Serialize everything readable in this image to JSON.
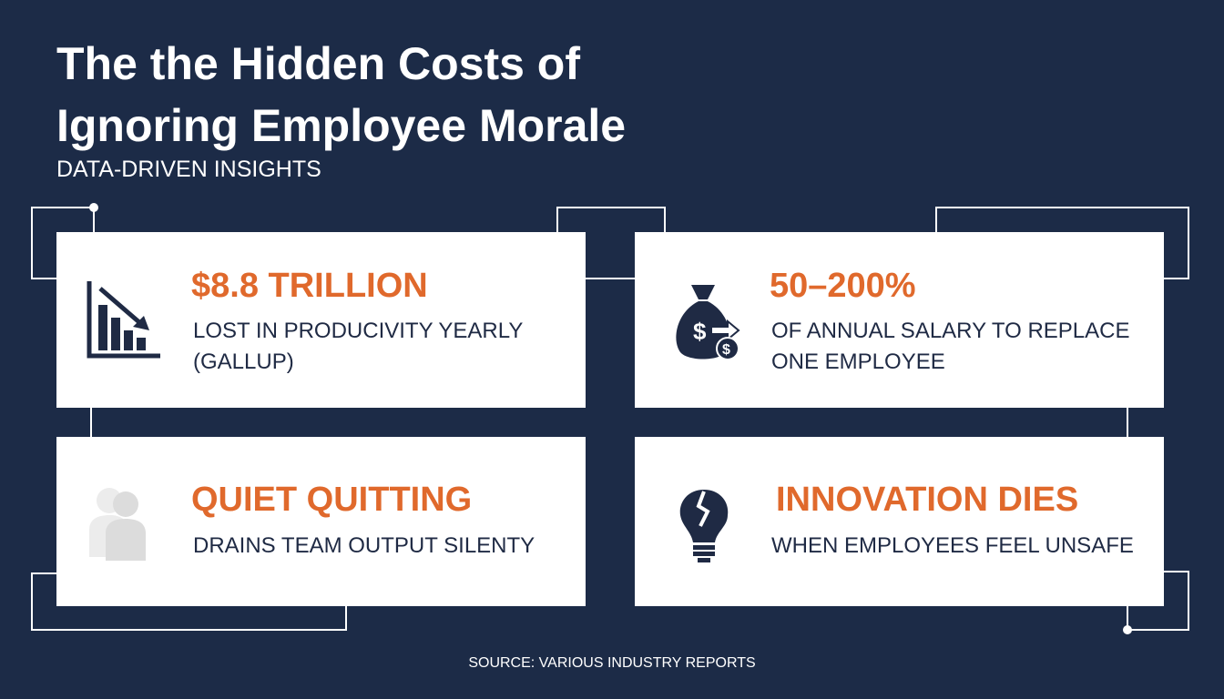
{
  "header": {
    "title_lines": [
      "The the Hidden Costs of",
      "Ignoring Employee Morale"
    ],
    "subtitle": "DATA-DRIVEN INSIGHTS"
  },
  "cards": [
    {
      "headline": "$8.8 TRILLION",
      "body": [
        "LOST IN PRODUCIVITY YEARLY",
        "(GALLUP)"
      ]
    },
    {
      "headline": "50–200%",
      "body": [
        "OF ANNUAL SALARY TO REPLACE",
        "ONE EMPLOYEE"
      ]
    },
    {
      "headline": "QUIET QUITTING",
      "body": [
        "DRAINS TEAM OUTPUT SILENTY"
      ]
    },
    {
      "headline": "INNOVATION DIES",
      "body": [
        "WHEN EMPLOYEES FEEL UNSAFE"
      ]
    }
  ],
  "footer": {
    "source": "SOURCE: VARIOUS INDUSTRY REPORTS"
  }
}
